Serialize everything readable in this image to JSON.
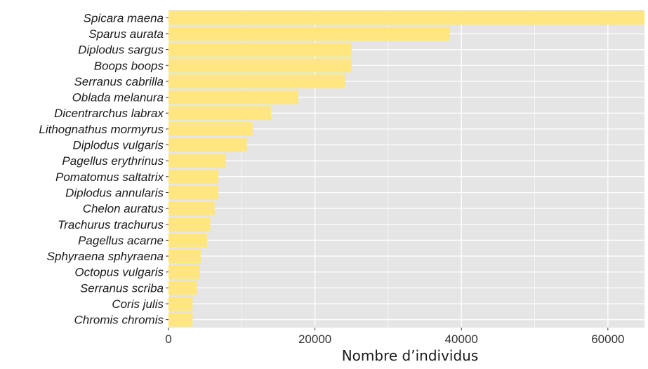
{
  "chart_data": {
    "type": "bar",
    "orientation": "horizontal",
    "title": "",
    "xlabel": "Nombre d’individus",
    "ylabel": "",
    "xlim": [
      0,
      65000
    ],
    "x_ticks": [
      0,
      20000,
      40000,
      60000
    ],
    "x_tick_labels": [
      "0",
      "20000",
      "40000",
      "60000"
    ],
    "grid": true,
    "legend": "none",
    "colors": {
      "bar": "#FFE680",
      "panel": "#E5E5E5",
      "grid": "#FFFFFF",
      "axis_text": "#333333"
    },
    "categories": [
      "Spicara maena",
      "Sparus aurata",
      "Diplodus sargus",
      "Boops boops",
      "Serranus cabrilla",
      "Oblada melanura",
      "Dicentrarchus labrax",
      "Lithognathus mormyrus",
      "Diplodus vulgaris",
      "Pagellus erythrinus",
      "Pomatomus saltatrix",
      "Diplodus annularis",
      "Chelon auratus",
      "Trachurus trachurus",
      "Pagellus acarne",
      "Sphyraena sphyraena",
      "Octopus vulgaris",
      "Serranus scriba",
      "Coris julis",
      "Chromis chromis"
    ],
    "values": [
      65000,
      38400,
      25000,
      25000,
      24100,
      17700,
      14000,
      11500,
      10700,
      7800,
      6800,
      6800,
      6300,
      5700,
      5300,
      4400,
      4300,
      3900,
      3300,
      3300
    ]
  }
}
